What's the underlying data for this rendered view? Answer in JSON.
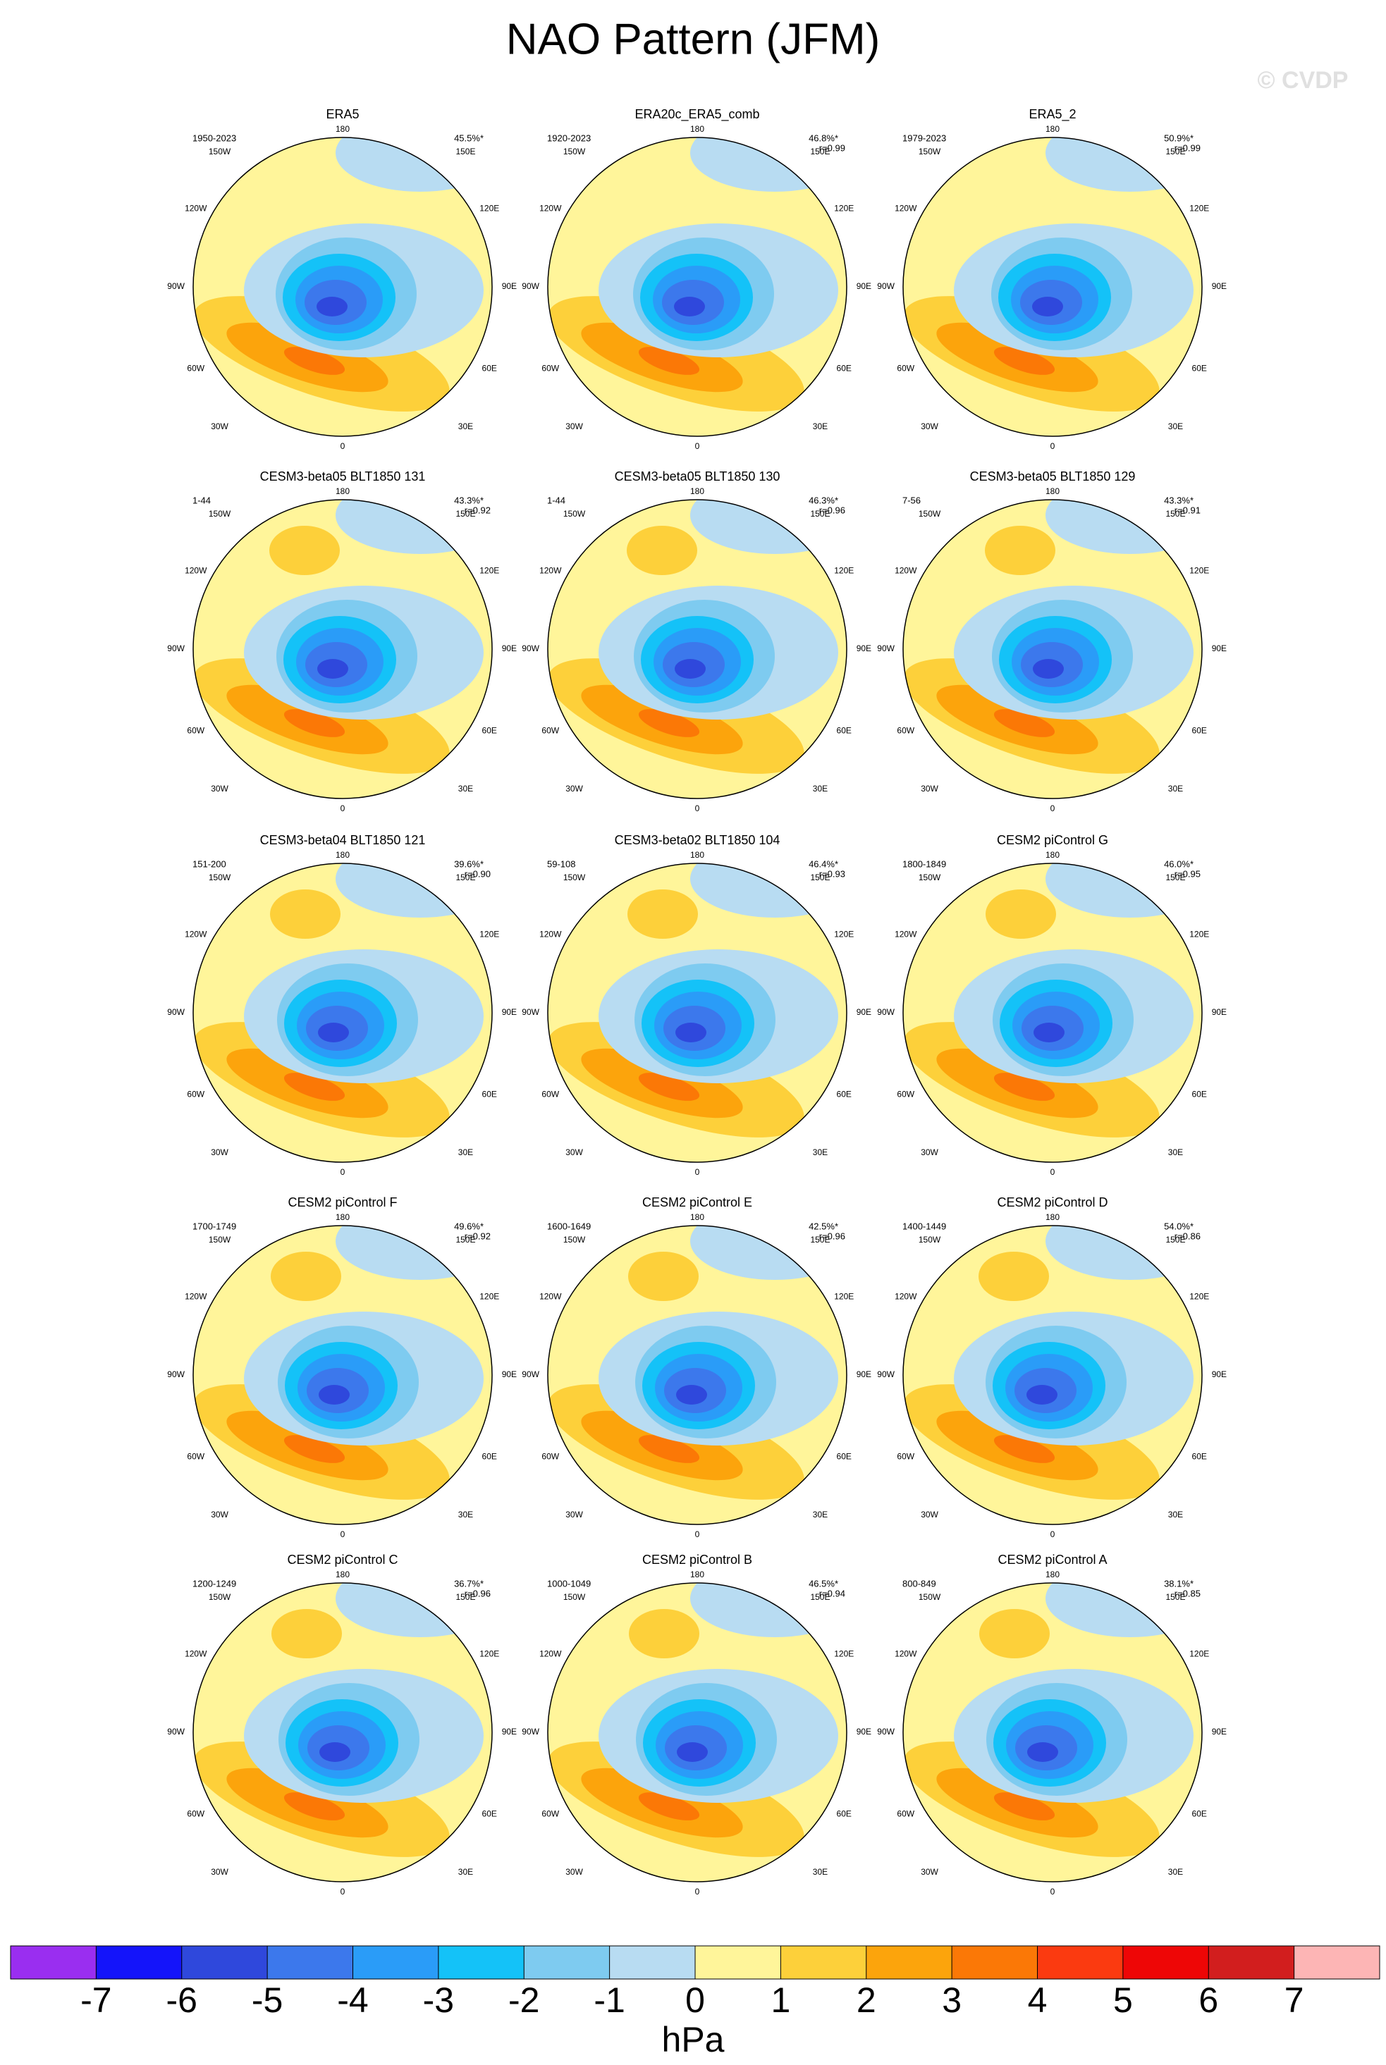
{
  "title": "NAO Pattern (JFM)",
  "watermark": "© CVDP",
  "longitude_labels": [
    "180",
    "150W",
    "150E",
    "120W",
    "120E",
    "90W",
    "90E",
    "60W",
    "60E",
    "30W",
    "30E",
    "0"
  ],
  "panels": [
    {
      "title": "ERA5",
      "period": "1950-2023",
      "pct": "45.5%*"
    },
    {
      "title": "ERA20c_ERA5_comb",
      "period": "1920-2023",
      "pct": "46.8%*",
      "r": "r=0.99"
    },
    {
      "title": "ERA5_2",
      "period": "1979-2023",
      "pct": "50.9%*",
      "r": "r=0.99"
    },
    {
      "title": "CESM3-beta05 BLT1850 131",
      "period": "1-44",
      "pct": "43.3%*",
      "r": "r=0.92"
    },
    {
      "title": "CESM3-beta05 BLT1850 130",
      "period": "1-44",
      "pct": "46.3%*",
      "r": "r=0.96"
    },
    {
      "title": "CESM3-beta05 BLT1850 129",
      "period": "7-56",
      "pct": "43.3%*",
      "r": "r=0.91"
    },
    {
      "title": "CESM3-beta04 BLT1850 121",
      "period": "151-200",
      "pct": "39.6%*",
      "r": "r=0.90"
    },
    {
      "title": "CESM3-beta02 BLT1850 104",
      "period": "59-108",
      "pct": "46.4%*",
      "r": "r=0.93"
    },
    {
      "title": "CESM2 piControl G",
      "period": "1800-1849",
      "pct": "46.0%*",
      "r": "r=0.95"
    },
    {
      "title": "CESM2 piControl F",
      "period": "1700-1749",
      "pct": "49.6%*",
      "r": "r=0.92"
    },
    {
      "title": "CESM2 piControl E",
      "period": "1600-1649",
      "pct": "42.5%*",
      "r": "r=0.96"
    },
    {
      "title": "CESM2 piControl D",
      "period": "1400-1449",
      "pct": "54.0%*",
      "r": "r=0.86"
    },
    {
      "title": "CESM2 piControl C",
      "period": "1200-1249",
      "pct": "36.7%*",
      "r": "r=0.96"
    },
    {
      "title": "CESM2 piControl B",
      "period": "1000-1049",
      "pct": "46.5%*",
      "r": "r=0.94"
    },
    {
      "title": "CESM2 piControl A",
      "period": "800-849",
      "pct": "38.1%*",
      "r": "r=0.85"
    }
  ],
  "colorbar": {
    "ticks": [
      -7,
      -6,
      -5,
      -4,
      -3,
      -2,
      -1,
      0,
      1,
      2,
      3,
      4,
      5,
      6,
      7
    ],
    "colors": [
      "#9a2ef0",
      "#1414fa",
      "#2f48dc",
      "#3c78ec",
      "#2a9cf8",
      "#14c2f8",
      "#7ecbf0",
      "#b8dcf2",
      "#fff59a",
      "#fdd03a",
      "#fca40c",
      "#fb7806",
      "#fb3a10",
      "#ee0606",
      "#d21e1e",
      "#fdb5b5"
    ],
    "unit": "hPa"
  }
}
